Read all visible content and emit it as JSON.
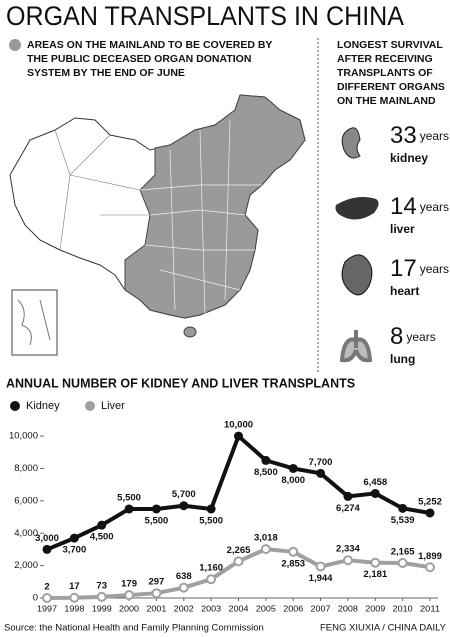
{
  "title": "ORGAN TRANSPLANTS IN CHINA",
  "map_legend": [
    "AREAS ON THE MAINLAND TO BE COVERED BY",
    "THE PUBLIC DECEASED ORGAN DONATION",
    "SYSTEM BY THE END OF JUNE"
  ],
  "survival": {
    "heading": [
      "LONGEST SURVIVAL",
      "AFTER RECEIVING",
      "TRANSPLANTS OF",
      "DIFFERENT ORGANS",
      "ON THE MAINLAND"
    ],
    "items": [
      {
        "number": 33,
        "unit": "years",
        "organ": "kidney"
      },
      {
        "number": 14,
        "unit": "years",
        "organ": "liver"
      },
      {
        "number": 17,
        "unit": "years",
        "organ": "heart"
      },
      {
        "number": 8,
        "unit": "years",
        "organ": "lung"
      }
    ]
  },
  "chart_data": {
    "type": "line",
    "title": "ANNUAL NUMBER OF KIDNEY AND LIVER TRANSPLANTS",
    "categories": [
      "1997",
      "1998",
      "1999",
      "2000",
      "2001",
      "2002",
      "2003",
      "2004",
      "2005",
      "2006",
      "2007",
      "2008",
      "2009",
      "2010",
      "2011"
    ],
    "series": [
      {
        "name": "Kidney",
        "color": "#111111",
        "values": [
          3000,
          3700,
          4500,
          5500,
          5500,
          5700,
          5500,
          10000,
          8500,
          8000,
          7700,
          6274,
          6458,
          5539,
          5252
        ],
        "value_labels": [
          "3,000",
          "3,700",
          "4,500",
          "5,500",
          "5,500",
          "5,700",
          "5,500",
          "10,000",
          "8,500",
          "8,000",
          "7,700",
          "6,274",
          "6,458",
          "5,539",
          "5,252"
        ]
      },
      {
        "name": "Liver",
        "color": "#a0a0a0",
        "values": [
          2,
          17,
          73,
          179,
          297,
          638,
          1160,
          2265,
          3018,
          2853,
          1944,
          2334,
          2181,
          2165,
          1899
        ],
        "value_labels": [
          "2",
          "17",
          "73",
          "179",
          "297",
          "638",
          "1,160",
          "2,265",
          "3,018",
          "2,853",
          "1,944",
          "2,334",
          "2,181",
          "2,165",
          "1,899"
        ]
      }
    ],
    "ylim": [
      0,
      10500
    ],
    "yticks": [
      0,
      {
        "value": 2000,
        "label": "2,000"
      },
      {
        "value": 4000,
        "label": "4,000"
      },
      {
        "value": 6000,
        "label": "6,000"
      },
      {
        "value": 8000,
        "label": "8,000"
      },
      {
        "value": 10000,
        "label": "10,000"
      }
    ],
    "grid": false,
    "legend": "top-left"
  },
  "source": "Source: the National Health and Family Planning Commission",
  "credit": "FENG XIUXIA / CHINA DAILY"
}
